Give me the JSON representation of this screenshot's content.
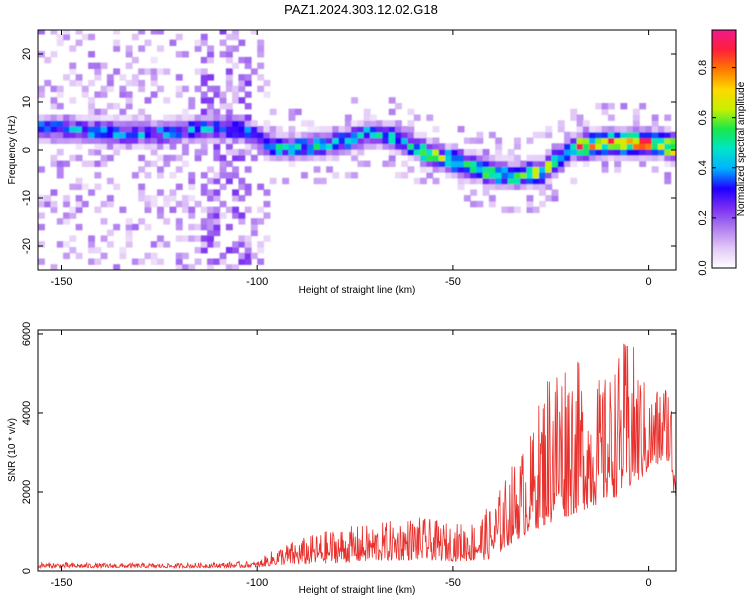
{
  "title": "PAZ1.2024.303.12.02.G18",
  "colors": {
    "snr_line": "#e8302c",
    "colorbar_stops": [
      "#ffffff",
      "#e2c8f7",
      "#b07ef0",
      "#7b2ff2",
      "#1e00ff",
      "#00b0ff",
      "#00e5c8",
      "#17e84a",
      "#c8f000",
      "#ffd800",
      "#ff7a00",
      "#ff1f3a",
      "#f0198c"
    ]
  },
  "chart_data": [
    {
      "type": "heatmap",
      "name": "spectrogram",
      "xlabel": "Height of straight line (km)",
      "ylabel": "Frequency (Hz)",
      "xlim": [
        -156,
        7
      ],
      "ylim": [
        -25,
        25
      ],
      "xticks": [
        -150,
        -100,
        -50,
        0
      ],
      "yticks": [
        -20,
        -10,
        0,
        10,
        20
      ],
      "ridge": {
        "x": [
          -155,
          -145,
          -135,
          -125,
          -115,
          -105,
          -97,
          -90,
          -80,
          -72,
          -65,
          -58,
          -50,
          -42,
          -35,
          -28,
          -20,
          -10,
          0,
          7
        ],
        "y": [
          4,
          3.5,
          3,
          3,
          4,
          4,
          0,
          0,
          1,
          3,
          2,
          -1,
          -3,
          -5,
          -6,
          -5,
          0,
          1,
          1,
          0
        ]
      },
      "colorbar": {
        "label": "Normalized spectral amplitude",
        "range": [
          0.0,
          0.95
        ],
        "ticks": [
          0.0,
          0.2,
          0.4,
          0.6,
          0.8
        ],
        "tick_labels": [
          "0.0",
          "0.2",
          "0.4",
          "0.6",
          "0.8"
        ]
      },
      "grid": false
    },
    {
      "type": "line",
      "name": "snr",
      "xlabel": "Height of straight line (km)",
      "ylabel": "SNR (10 * v/v)",
      "xlim": [
        -156,
        7
      ],
      "ylim": [
        0,
        6100
      ],
      "xticks": [
        -150,
        -100,
        -50,
        0
      ],
      "yticks": [
        0,
        2000,
        4000,
        6000
      ],
      "envelope": {
        "x": [
          -156,
          -140,
          -120,
          -100,
          -95,
          -90,
          -80,
          -70,
          -60,
          -50,
          -45,
          -40,
          -35,
          -30,
          -25,
          -20,
          -15,
          -10,
          -5,
          0,
          5,
          7
        ],
        "min": [
          80,
          80,
          80,
          90,
          150,
          150,
          200,
          250,
          280,
          250,
          250,
          300,
          700,
          1000,
          1200,
          1400,
          1600,
          1800,
          2000,
          2500,
          2800,
          1500
        ],
        "max": [
          220,
          200,
          200,
          250,
          600,
          800,
          1100,
          1200,
          1400,
          1200,
          1300,
          1700,
          2700,
          3500,
          5600,
          5700,
          4800,
          5000,
          6100,
          4500,
          5000,
          3900
        ]
      },
      "grid": false
    }
  ]
}
